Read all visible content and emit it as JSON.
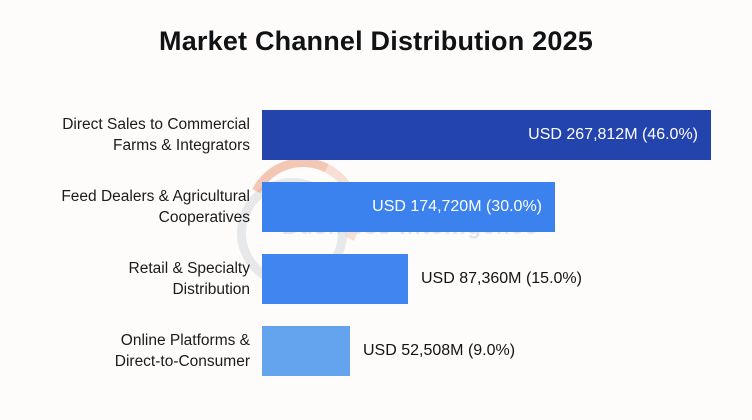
{
  "chart_data": {
    "type": "bar",
    "orientation": "horizontal",
    "title": "Market Channel Distribution 2025",
    "xlabel": "",
    "ylabel": "",
    "unit": "USD millions",
    "xlim_percent": [
      0,
      47
    ],
    "grid": false,
    "legend": "none",
    "categories": [
      "Direct Sales to Commercial\nFarms & Integrators",
      "Feed Dealers & Agricultural\nCooperatives",
      "Retail & Specialty\nDistribution",
      "Online Platforms &\nDirect-to-Consumer"
    ],
    "values_percent": [
      46.0,
      30.0,
      15.0,
      9.0
    ],
    "values_usd_m": [
      267812,
      174720,
      87360,
      52508
    ],
    "value_labels": [
      "USD 267,812M (46.0%)",
      "USD 174,720M (30.0%)",
      "USD 87,360M (15.0%)",
      "USD 52,508M (9.0%)"
    ],
    "value_label_placement": [
      "inside",
      "inside",
      "outside",
      "outside"
    ],
    "bar_colors": [
      "#2444ad",
      "#3b82ee",
      "#4186f0",
      "#64a3ee"
    ]
  },
  "watermark": {
    "line1": "Consegic",
    "line2": "Business Intelligence"
  }
}
